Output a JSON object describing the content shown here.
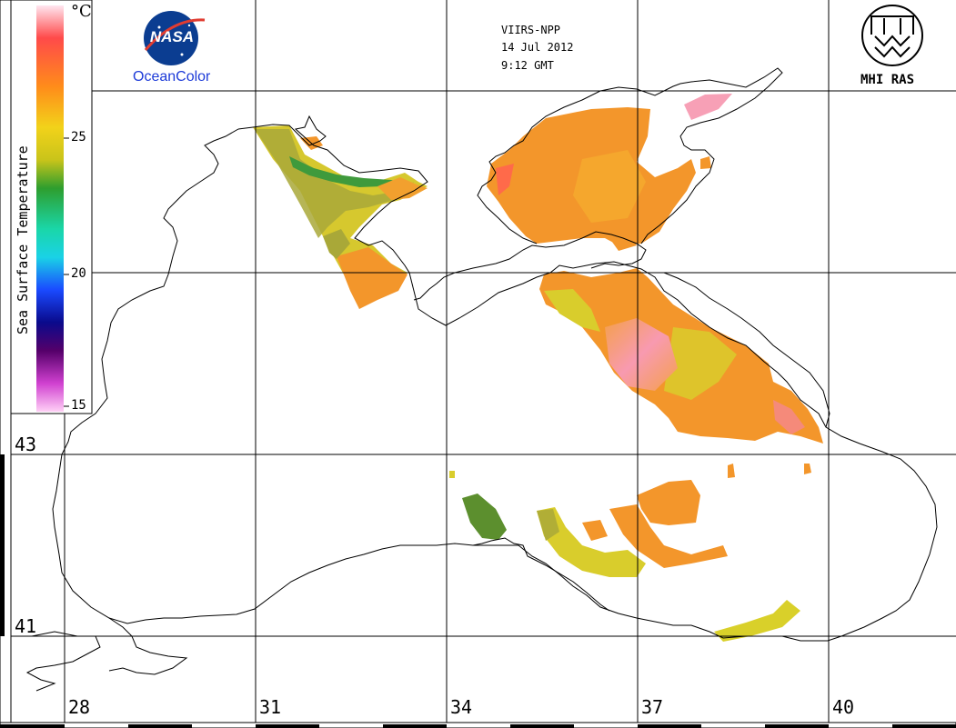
{
  "header": {
    "sensor": "VIIRS-NPP",
    "date": "14 Jul 2012",
    "time": "9:12 GMT"
  },
  "logos": {
    "left_caption": "OceanColor",
    "left_badge": "NASA",
    "right_caption": "MHI RAS"
  },
  "legend": {
    "title": "Sea Surface Temperature",
    "unit": "°C",
    "ticks": [
      "25",
      "20",
      "15"
    ],
    "colors": [
      "#ffe6f0",
      "#ff4a4a",
      "#ff8c1a",
      "#f2d21a",
      "#c9c41a",
      "#2e9e2e",
      "#1ad6a8",
      "#1ad2e6",
      "#1a4aff",
      "#0a0a8c",
      "#55006a",
      "#d040d0",
      "#ffd0f6"
    ]
  },
  "axes": {
    "lon_labels": [
      "28",
      "31",
      "34",
      "37",
      "40"
    ],
    "lat_labels": [
      "43",
      "41"
    ]
  },
  "palette": {
    "sst_orange": "#f3962b",
    "sst_light_orange": "#f5ab2e",
    "sst_yellow": "#d9cd2c",
    "sst_olive": "#a9a838",
    "sst_green": "#3f9a3c",
    "sst_pink": "#f7a0b6",
    "coast": "#000000",
    "grid": "#000000"
  }
}
